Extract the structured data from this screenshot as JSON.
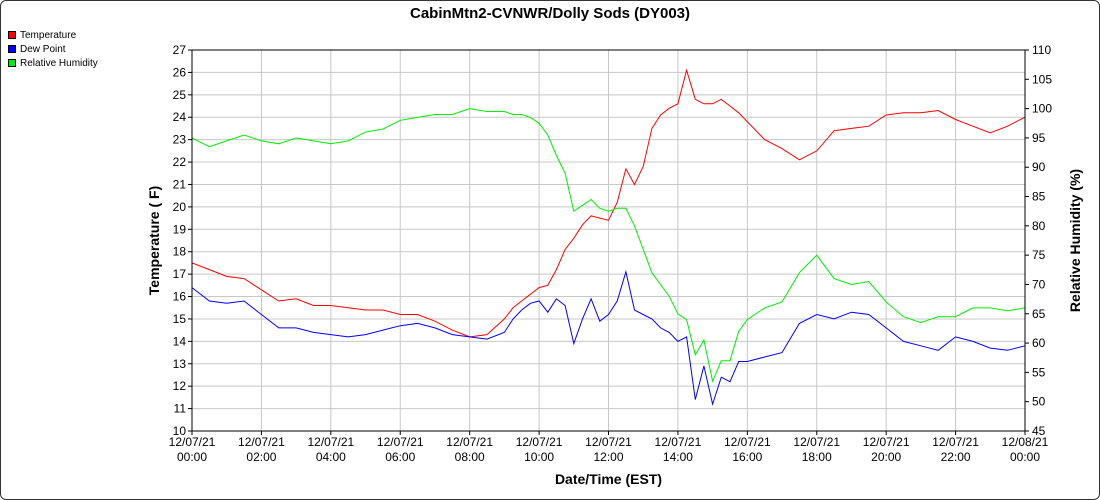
{
  "chart_data": {
    "type": "line",
    "title": "CabinMtn2-CVNWR/Dolly Sods (DY003)",
    "xlabel": "Date/Time (EST)",
    "ylabel_left": "Temperature ( F)",
    "ylabel_right": "Relative Humidity (%)",
    "ylim_left": [
      10,
      27
    ],
    "ylim_right": [
      45,
      110
    ],
    "xlim_hours": [
      0,
      24
    ],
    "grid": true,
    "legend_placement": "top-left",
    "left_ticks": [
      "10",
      "11",
      "12",
      "13",
      "14",
      "15",
      "16",
      "17",
      "18",
      "19",
      "20",
      "21",
      "22",
      "23",
      "24",
      "25",
      "26",
      "27"
    ],
    "right_ticks": [
      "45",
      "50",
      "55",
      "60",
      "65",
      "70",
      "75",
      "80",
      "85",
      "90",
      "95",
      "100",
      "105",
      "110"
    ],
    "x_ticks": [
      {
        "date": "12/07/21",
        "time": "00:00"
      },
      {
        "date": "12/07/21",
        "time": "02:00"
      },
      {
        "date": "12/07/21",
        "time": "04:00"
      },
      {
        "date": "12/07/21",
        "time": "06:00"
      },
      {
        "date": "12/07/21",
        "time": "08:00"
      },
      {
        "date": "12/07/21",
        "time": "10:00"
      },
      {
        "date": "12/07/21",
        "time": "12:00"
      },
      {
        "date": "12/07/21",
        "time": "14:00"
      },
      {
        "date": "12/07/21",
        "time": "16:00"
      },
      {
        "date": "12/07/21",
        "time": "18:00"
      },
      {
        "date": "12/07/21",
        "time": "20:00"
      },
      {
        "date": "12/07/21",
        "time": "22:00"
      },
      {
        "date": "12/08/21",
        "time": "00:00"
      }
    ],
    "series": [
      {
        "name": "Temperature",
        "color": "#ff0000",
        "axis": "left",
        "x": [
          0,
          0.5,
          1,
          1.5,
          2,
          2.5,
          3,
          3.5,
          4,
          4.5,
          5,
          5.5,
          6,
          6.5,
          7,
          7.5,
          8,
          8.5,
          9,
          9.25,
          9.5,
          9.75,
          10,
          10.25,
          10.5,
          10.75,
          11,
          11.25,
          11.5,
          11.75,
          12,
          12.25,
          12.5,
          12.75,
          13,
          13.25,
          13.5,
          13.75,
          14,
          14.25,
          14.5,
          14.75,
          15,
          15.25,
          15.5,
          15.75,
          16,
          16.5,
          17,
          17.5,
          18,
          18.5,
          19,
          19.5,
          20,
          20.5,
          21,
          21.5,
          22,
          22.5,
          23,
          23.5,
          24
        ],
        "values": [
          17.5,
          17.2,
          16.9,
          16.8,
          16.3,
          15.8,
          15.9,
          15.6,
          15.6,
          15.5,
          15.4,
          15.4,
          15.2,
          15.2,
          14.9,
          14.5,
          14.2,
          14.3,
          15.0,
          15.5,
          15.8,
          16.1,
          16.4,
          16.5,
          17.2,
          18.1,
          18.6,
          19.2,
          19.6,
          19.5,
          19.4,
          20.2,
          21.7,
          21.0,
          21.8,
          23.5,
          24.1,
          24.4,
          24.6,
          26.1,
          24.8,
          24.6,
          24.6,
          24.8,
          24.5,
          24.2,
          23.8,
          23.0,
          22.6,
          22.1,
          22.5,
          23.4,
          23.5,
          23.6,
          24.1,
          24.2,
          24.2,
          24.3,
          23.9,
          23.6,
          23.3,
          23.6,
          24.0
        ]
      },
      {
        "name": "Dew Point",
        "color": "#0000ff",
        "axis": "left",
        "x": [
          0,
          0.5,
          1,
          1.5,
          2,
          2.5,
          3,
          3.5,
          4,
          4.5,
          5,
          5.5,
          6,
          6.5,
          7,
          7.5,
          8,
          8.5,
          9,
          9.25,
          9.5,
          9.75,
          10,
          10.25,
          10.5,
          10.75,
          11,
          11.25,
          11.5,
          11.75,
          12,
          12.25,
          12.5,
          12.75,
          13,
          13.25,
          13.5,
          13.75,
          14,
          14.25,
          14.5,
          14.75,
          15,
          15.25,
          15.5,
          15.75,
          16,
          16.5,
          17,
          17.5,
          18,
          18.5,
          19,
          19.5,
          20,
          20.5,
          21,
          21.5,
          22,
          22.5,
          23,
          23.5,
          24
        ],
        "values": [
          16.4,
          15.8,
          15.7,
          15.8,
          15.2,
          14.6,
          14.6,
          14.4,
          14.3,
          14.2,
          14.3,
          14.5,
          14.7,
          14.8,
          14.6,
          14.3,
          14.2,
          14.1,
          14.4,
          15.0,
          15.4,
          15.7,
          15.8,
          15.3,
          15.9,
          15.6,
          13.9,
          15.0,
          15.9,
          14.9,
          15.2,
          15.8,
          17.1,
          15.4,
          15.2,
          15.0,
          14.6,
          14.4,
          14.0,
          14.2,
          11.4,
          12.9,
          11.2,
          12.4,
          12.2,
          13.1,
          13.1,
          13.3,
          13.5,
          14.8,
          15.2,
          15.0,
          15.3,
          15.2,
          14.6,
          14.0,
          13.8,
          13.6,
          14.2,
          14.0,
          13.7,
          13.6,
          13.8
        ]
      },
      {
        "name": "Relative Humidity",
        "color": "#00ee00",
        "axis": "right",
        "x": [
          0,
          0.5,
          1,
          1.5,
          2,
          2.5,
          3,
          3.5,
          4,
          4.5,
          5,
          5.5,
          6,
          6.5,
          7,
          7.5,
          8,
          8.5,
          9,
          9.25,
          9.5,
          9.75,
          10,
          10.25,
          10.5,
          10.75,
          11,
          11.25,
          11.5,
          11.75,
          12,
          12.25,
          12.5,
          12.75,
          13,
          13.25,
          13.5,
          13.75,
          14,
          14.25,
          14.5,
          14.75,
          15,
          15.25,
          15.5,
          15.75,
          16,
          16.5,
          17,
          17.5,
          18,
          18.5,
          19,
          19.5,
          20,
          20.5,
          21,
          21.5,
          22,
          22.5,
          23,
          23.5,
          24
        ],
        "values": [
          95,
          93.5,
          94.5,
          95.5,
          94.5,
          94,
          95,
          94.5,
          94,
          94.5,
          96,
          96.5,
          98,
          98.5,
          99,
          99,
          100,
          99.5,
          99.5,
          99,
          99,
          98.5,
          97.5,
          95.5,
          92,
          89,
          82.5,
          83.5,
          84.5,
          83,
          82.5,
          83,
          83,
          80,
          76,
          72,
          70,
          68,
          65,
          64,
          58,
          60.5,
          53.5,
          57,
          57,
          62,
          64,
          66,
          67,
          72,
          75,
          71,
          70,
          70.5,
          67,
          64.5,
          63.5,
          64.5,
          64.5,
          66,
          66,
          65.5,
          66
        ]
      }
    ]
  }
}
